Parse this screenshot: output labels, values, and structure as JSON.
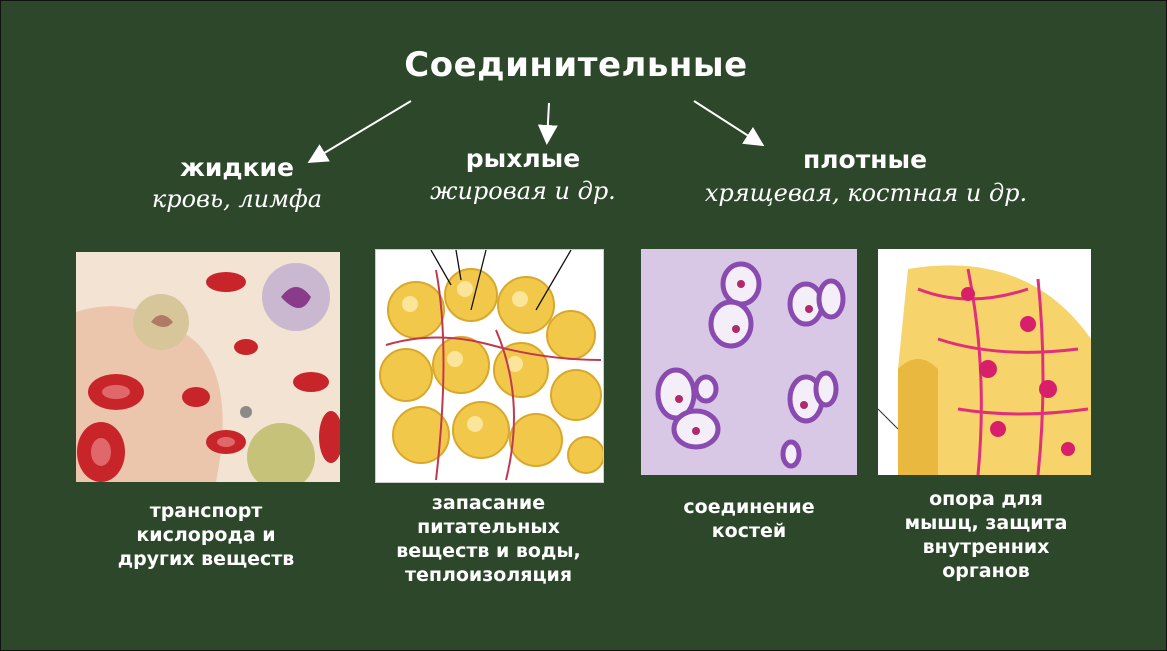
{
  "title": "Соединительные",
  "categories": [
    {
      "name": "жидкие",
      "examples": "кровь, лимфа"
    },
    {
      "name": "рыхлые",
      "examples": "жировая и др."
    },
    {
      "name": "плотные",
      "examples": "хрящевая,  костная и др."
    }
  ],
  "images": [
    {
      "caption_lines": [
        "транспорт",
        "кислорода и",
        "других веществ"
      ]
    },
    {
      "caption_lines": [
        "запасание",
        "питательных",
        "веществ и воды,",
        "теплоизоляция"
      ]
    },
    {
      "caption_lines": [
        "соединение",
        "костей"
      ]
    },
    {
      "caption_lines": [
        "опора для",
        "мышц, защита",
        "внутренних",
        "органов"
      ]
    }
  ],
  "colors": {
    "background": "#2d472b",
    "text": "#ffffff",
    "blood_cell": "#c8252b",
    "fat_cell": "#f2c84a",
    "cartilage_bg": "#d9c7e6",
    "cartilage_cell": "#8a4bb0",
    "bone_pink": "#e0307a",
    "bone_yellow": "#f6d36b"
  }
}
